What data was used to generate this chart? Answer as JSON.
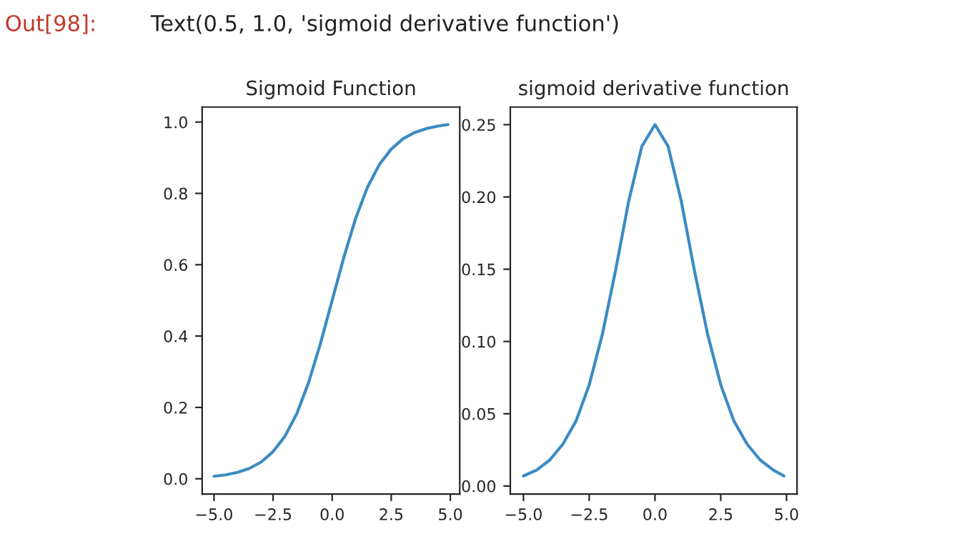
{
  "chart_data": [
    {
      "type": "line",
      "title": "Sigmoid Function",
      "annotations": [
        "Out[98]:",
        "Text(0.5, 1.0, 'sigmoid derivative function')"
      ],
      "x": [
        -5,
        -4.5,
        -4,
        -3.5,
        -3,
        -2.5,
        -2,
        -1.5,
        -1,
        -0.5,
        0,
        0.5,
        1,
        1.5,
        2,
        2.5,
        3,
        3.5,
        4,
        4.5,
        4.9
      ],
      "series": [
        {
          "color": "#3b8bc2",
          "values": [
            0.007,
            0.011,
            0.018,
            0.029,
            0.047,
            0.076,
            0.119,
            0.182,
            0.269,
            0.378,
            0.5,
            0.622,
            0.731,
            0.818,
            0.881,
            0.924,
            0.953,
            0.971,
            0.982,
            0.989,
            0.993
          ]
        }
      ],
      "xlim": [
        -5.5,
        5.4
      ],
      "ylim": [
        -0.043,
        1.042
      ],
      "xticks": [
        {
          "value": -5,
          "label": "−5.0"
        },
        {
          "value": -2.5,
          "label": "−2.5"
        },
        {
          "value": 0,
          "label": "0.0"
        },
        {
          "value": 2.5,
          "label": "2.5"
        },
        {
          "value": 5,
          "label": "5.0"
        }
      ],
      "yticks": [
        {
          "value": 0,
          "label": "0.0"
        },
        0.2,
        0.4,
        0.6,
        0.8,
        {
          "value": 1,
          "label": "1.0"
        }
      ],
      "grid": false,
      "legend": false
    },
    {
      "type": "line",
      "title": "sigmoid derivative function",
      "x": [
        -5,
        -4.5,
        -4,
        -3.5,
        -3,
        -2.5,
        -2,
        -1.5,
        -1,
        -0.5,
        0,
        0.5,
        1,
        1.5,
        2,
        2.5,
        3,
        3.5,
        4,
        4.5,
        4.9
      ],
      "series": [
        {
          "color": "#3b8bc2",
          "values": [
            0.007,
            0.011,
            0.018,
            0.029,
            0.045,
            0.07,
            0.105,
            0.149,
            0.197,
            0.235,
            0.25,
            0.235,
            0.197,
            0.149,
            0.105,
            0.07,
            0.045,
            0.029,
            0.018,
            0.011,
            0.007
          ]
        }
      ],
      "xlim": [
        -5.5,
        5.4
      ],
      "ylim": [
        -0.0056,
        0.2622
      ],
      "xticks": [
        {
          "value": -5,
          "label": "−5.0"
        },
        {
          "value": -2.5,
          "label": "−2.5"
        },
        {
          "value": 0,
          "label": "0.0"
        },
        {
          "value": 2.5,
          "label": "2.5"
        },
        {
          "value": 5,
          "label": "5.0"
        }
      ],
      "yticks": [
        {
          "value": 0,
          "label": "0.00"
        },
        0.05,
        {
          "value": 0.1,
          "label": "0.10"
        },
        0.15,
        {
          "value": 0.2,
          "label": "0.20"
        },
        0.25
      ],
      "grid": false,
      "legend": false
    }
  ]
}
